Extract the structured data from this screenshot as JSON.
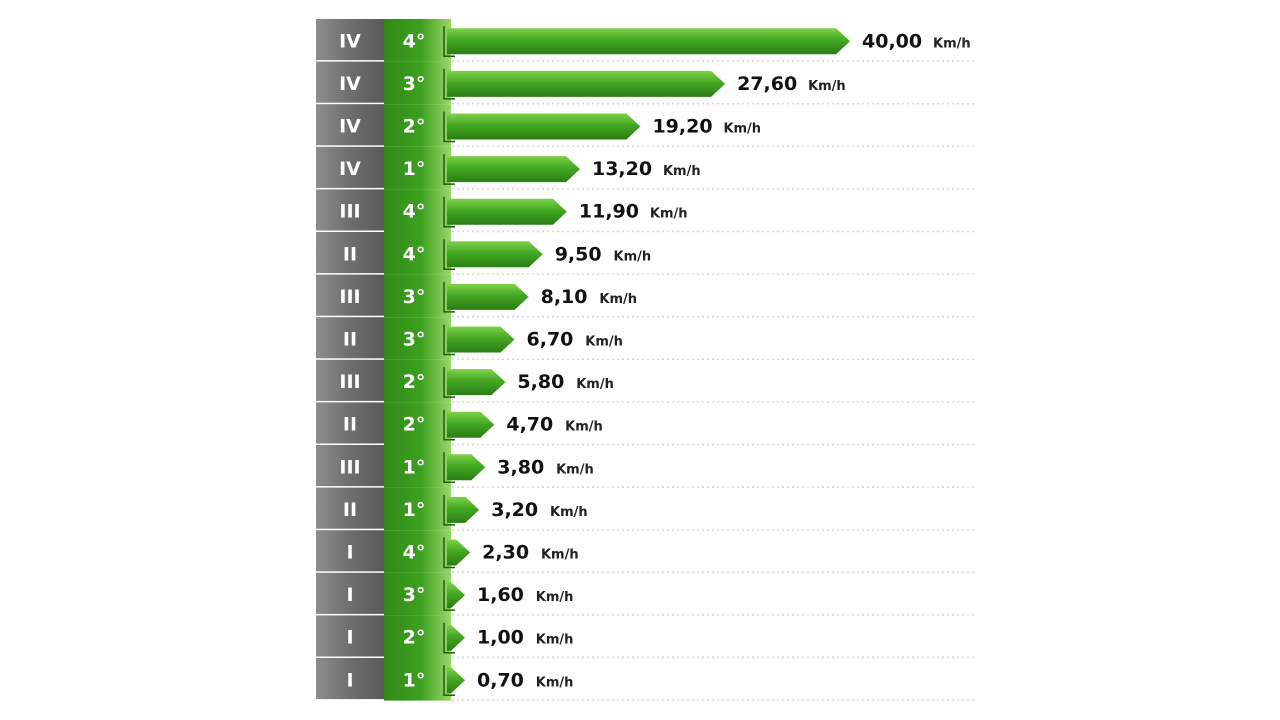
{
  "chart_data": {
    "type": "bar",
    "orientation": "horizontal",
    "title": "",
    "xlabel": "",
    "ylabel": "",
    "unit": "Km/h",
    "categories": [
      {
        "range": "IV",
        "gear": "4°"
      },
      {
        "range": "IV",
        "gear": "3°"
      },
      {
        "range": "IV",
        "gear": "2°"
      },
      {
        "range": "IV",
        "gear": "1°"
      },
      {
        "range": "III",
        "gear": "4°"
      },
      {
        "range": "II",
        "gear": "4°"
      },
      {
        "range": "III",
        "gear": "3°"
      },
      {
        "range": "II",
        "gear": "3°"
      },
      {
        "range": "III",
        "gear": "2°"
      },
      {
        "range": "II",
        "gear": "2°"
      },
      {
        "range": "III",
        "gear": "1°"
      },
      {
        "range": "II",
        "gear": "1°"
      },
      {
        "range": "I",
        "gear": "4°"
      },
      {
        "range": "I",
        "gear": "3°"
      },
      {
        "range": "I",
        "gear": "2°"
      },
      {
        "range": "I",
        "gear": "1°"
      }
    ],
    "values": [
      40.0,
      27.6,
      19.2,
      13.2,
      11.9,
      9.5,
      8.1,
      6.7,
      5.8,
      4.7,
      3.8,
      3.2,
      2.3,
      1.6,
      1.0,
      0.7
    ],
    "value_labels": [
      "40,00",
      "27,60",
      "19,20",
      "13,20",
      "11,90",
      "9,50",
      "8,10",
      "6,70",
      "5,80",
      "4,70",
      "3,80",
      "3,20",
      "2,30",
      "1,60",
      "1,00",
      "0,70"
    ],
    "unit_labels": [
      "Km/h",
      "Km/h",
      "Km/h",
      "Km/h",
      "Km/h",
      "Km/h",
      "Km/h",
      "Km/h",
      "Km/h",
      "Km/h",
      "Km/h",
      "Km/h",
      "Km/h",
      "Km/h",
      "Km/h",
      "Km/h"
    ],
    "grid": true,
    "legend": "none",
    "colors": {
      "range_column": "#7a7a7a",
      "gear_column": "#3a9a1e",
      "bar": "#3f9c1f",
      "bar_highlight": "#6cc43a",
      "grid": "#d8d8d8"
    }
  }
}
